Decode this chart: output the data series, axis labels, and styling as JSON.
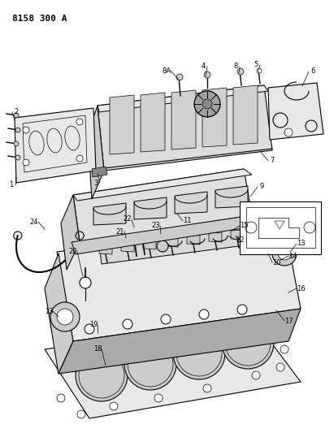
{
  "title": "8158 300 A",
  "bg_color": "#ffffff",
  "line_color": "#000000",
  "fig_width": 4.11,
  "fig_height": 5.33,
  "dpi": 100,
  "lw": 0.8,
  "gray_light": "#e8e8e8",
  "gray_mid": "#cccccc",
  "gray_dark": "#aaaaaa",
  "white": "#ffffff"
}
